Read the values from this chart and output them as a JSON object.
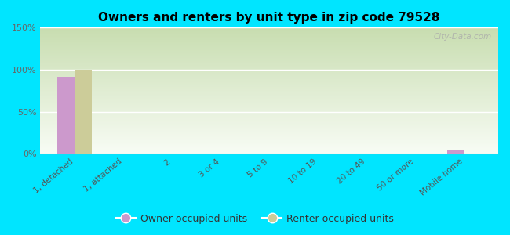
{
  "title": "Owners and renters by unit type in zip code 79528",
  "categories": [
    "1, detached",
    "1, attached",
    "2",
    "3 or 4",
    "5 to 9",
    "10 to 19",
    "20 to 49",
    "50 or more",
    "Mobile home"
  ],
  "owner_values": [
    92,
    0,
    0,
    0,
    0,
    0,
    0,
    0,
    5
  ],
  "renter_values": [
    100,
    0,
    0,
    0,
    0,
    0,
    0,
    0,
    0
  ],
  "owner_color": "#cc99cc",
  "renter_color": "#cccc99",
  "background_color": "#00e5ff",
  "grad_top": "#c8ddb0",
  "grad_bottom": "#f8fcf5",
  "ylim": [
    0,
    150
  ],
  "yticks": [
    0,
    50,
    100,
    150
  ],
  "ytick_labels": [
    "0%",
    "50%",
    "100%",
    "150%"
  ],
  "bar_width": 0.35,
  "legend_labels": [
    "Owner occupied units",
    "Renter occupied units"
  ],
  "watermark": "City-Data.com"
}
